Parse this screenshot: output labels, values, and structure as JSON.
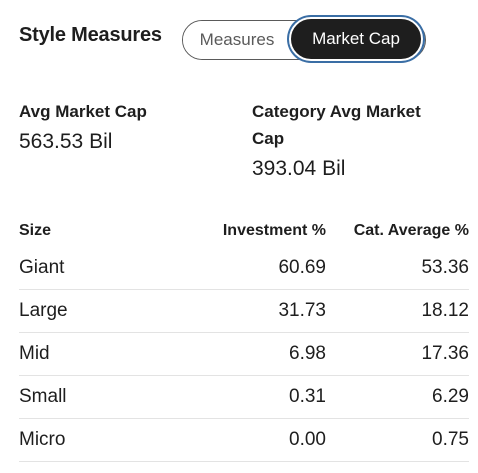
{
  "header": {
    "title": "Style Measures",
    "tabs": [
      {
        "label": "Measures",
        "active": false
      },
      {
        "label": "Market Cap",
        "active": true
      }
    ]
  },
  "summary": {
    "avg_market_cap": {
      "label": "Avg Market Cap",
      "value": "563.53 Bil"
    },
    "category_avg_market_cap": {
      "label_line1": "Category Avg Market",
      "label_line2": "Cap",
      "value": "393.04 Bil"
    }
  },
  "table": {
    "headers": {
      "size": "Size",
      "investment": "Investment %",
      "category": "Cat. Average %"
    },
    "rows": [
      {
        "size": "Giant",
        "investment": "60.69",
        "category": "53.36"
      },
      {
        "size": "Large",
        "investment": "31.73",
        "category": "18.12"
      },
      {
        "size": "Mid",
        "investment": "6.98",
        "category": "17.36"
      },
      {
        "size": "Small",
        "investment": "0.31",
        "category": "6.29"
      },
      {
        "size": "Micro",
        "investment": "0.00",
        "category": "0.75"
      }
    ]
  },
  "colors": {
    "active_tab_bg": "#1e1e1e",
    "focus_ring": "#3a6ea5",
    "divider": "#e3e3e3"
  }
}
